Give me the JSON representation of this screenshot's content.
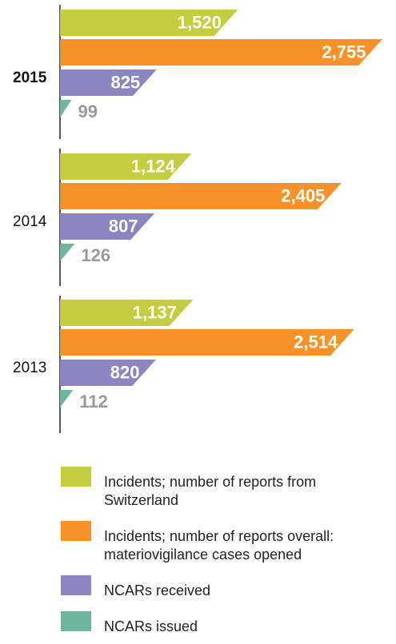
{
  "chart_data": {
    "type": "bar",
    "categories": [
      "2015",
      "2014",
      "2013"
    ],
    "series": [
      {
        "name": "Incidents; number of reports from Switzerland",
        "color": "#c3cd3f",
        "values": [
          1520,
          1124,
          1137
        ],
        "value_labels": [
          "1,520",
          "1,124",
          "1,137"
        ]
      },
      {
        "name": "Incidents; number of reports overall: materiovigilance cases opened",
        "color": "#f7922a",
        "values": [
          2755,
          2405,
          2514
        ],
        "value_labels": [
          "2,755",
          "2,405",
          "2,514"
        ]
      },
      {
        "name": "NCARs received",
        "color": "#8b85c1",
        "values": [
          825,
          807,
          820
        ],
        "value_labels": [
          "825",
          "807",
          "820"
        ]
      },
      {
        "name": "NCARs issued",
        "color": "#6fb59d",
        "values": [
          99,
          126,
          112
        ],
        "value_labels": [
          "99",
          "126",
          "112"
        ]
      }
    ]
  }
}
